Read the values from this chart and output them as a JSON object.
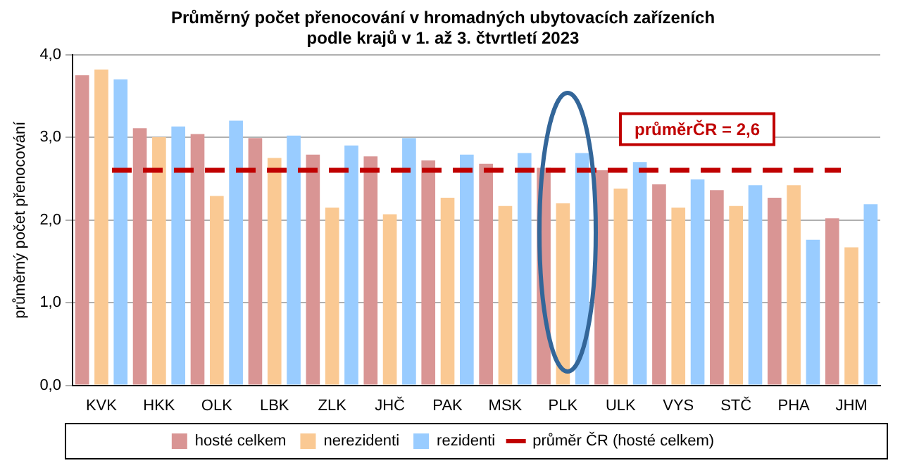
{
  "chart_data": {
    "type": "bar",
    "title": "Průměrný počet přenocování v hromadných ubytovacích zařízeních\npodle krajů v 1. až 3. čtvrtletí 2023",
    "ylabel": "průměrný počet přenocování",
    "categories": [
      "KVK",
      "HKK",
      "OLK",
      "LBK",
      "ZLK",
      "JHČ",
      "PAK",
      "MSK",
      "PLK",
      "ULK",
      "VYS",
      "STČ",
      "PHA",
      "JHM"
    ],
    "series": [
      {
        "name": "hosté celkem",
        "color": "#d99594",
        "values": [
          3.75,
          3.11,
          3.04,
          2.99,
          2.79,
          2.77,
          2.72,
          2.68,
          2.63,
          2.6,
          2.43,
          2.36,
          2.27,
          2.02
        ]
      },
      {
        "name": "nerezidenti",
        "color": "#fac993",
        "values": [
          3.82,
          3.0,
          2.29,
          2.75,
          2.15,
          2.07,
          2.27,
          2.17,
          2.2,
          2.38,
          2.15,
          2.17,
          2.42,
          1.67
        ]
      },
      {
        "name": "rezidenti",
        "color": "#99ccff",
        "values": [
          3.7,
          3.13,
          3.2,
          3.02,
          2.9,
          2.99,
          2.79,
          2.81,
          2.81,
          2.7,
          2.49,
          2.42,
          1.76,
          2.19
        ]
      }
    ],
    "ylim": [
      0,
      4
    ],
    "yticks": [
      {
        "value": 0,
        "label": "0,0"
      },
      {
        "value": 1,
        "label": "1,0"
      },
      {
        "value": 2,
        "label": "2,0"
      },
      {
        "value": 3,
        "label": "3,0"
      },
      {
        "value": 4,
        "label": "4,0"
      }
    ],
    "grid": "y",
    "legend": "bottom",
    "ref_lines": [
      {
        "axis": "y",
        "value": 2.6,
        "label": "průměr ČR (hosté celkem)",
        "color": "#c00000",
        "line_style": "dashed"
      }
    ],
    "annotations": [
      "průměrČR = 2,6"
    ]
  }
}
